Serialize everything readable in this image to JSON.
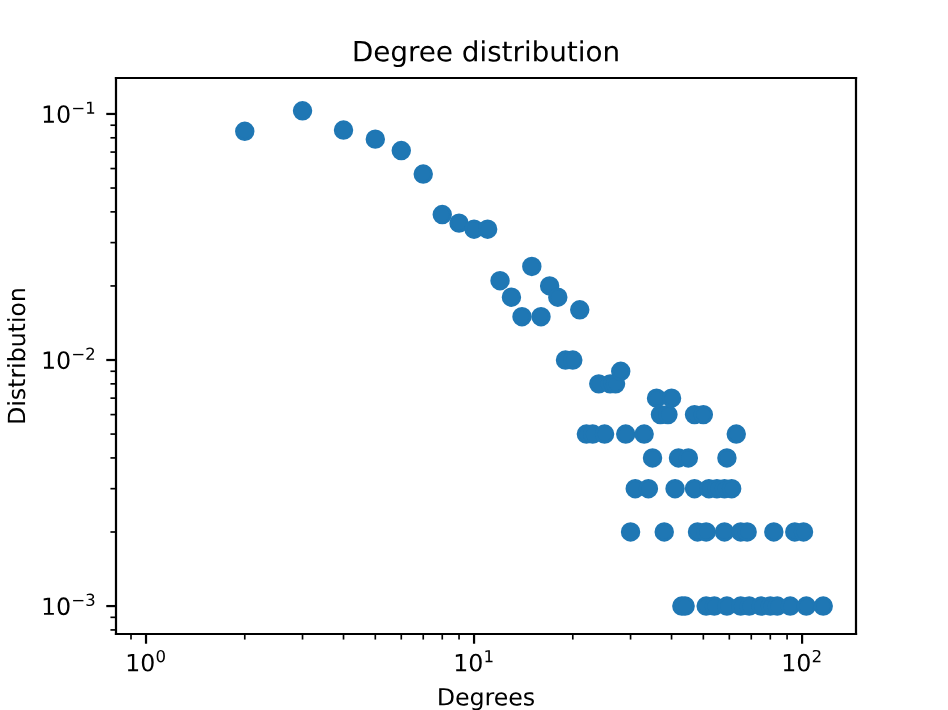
{
  "chart_data": {
    "type": "scatter",
    "title": "Degree distribution",
    "xlabel": "Degrees",
    "ylabel": "Distribution",
    "log": "xy",
    "marker": "circle",
    "grid": false,
    "x": [
      2,
      3,
      4,
      5,
      6,
      7,
      8,
      9,
      10,
      11,
      12,
      13,
      14,
      15,
      16,
      17,
      18,
      19,
      20,
      21,
      22,
      23,
      24,
      25,
      26,
      27,
      28,
      29,
      30,
      31,
      33,
      34,
      35,
      36,
      37,
      38,
      39,
      40,
      41,
      42,
      43,
      44,
      45,
      47,
      47,
      48,
      50,
      51,
      51,
      52,
      54,
      55,
      58,
      58,
      59,
      59,
      61,
      63,
      65,
      65,
      68,
      69,
      75,
      80,
      82,
      84,
      92,
      95,
      101,
      103,
      116
    ],
    "series": [
      {
        "color": "#1f77b4",
        "values": [
          0.085,
          0.103,
          0.086,
          0.079,
          0.071,
          0.057,
          0.039,
          0.036,
          0.034,
          0.034,
          0.021,
          0.018,
          0.015,
          0.024,
          0.015,
          0.02,
          0.018,
          0.01,
          0.01,
          0.016,
          0.005,
          0.005,
          0.008,
          0.005,
          0.008,
          0.008,
          0.009,
          0.005,
          0.002,
          0.003,
          0.005,
          0.003,
          0.004,
          0.007,
          0.006,
          0.002,
          0.006,
          0.007,
          0.003,
          0.004,
          0.001,
          0.001,
          0.004,
          0.003,
          0.006,
          0.002,
          0.006,
          0.002,
          0.001,
          0.003,
          0.001,
          0.003,
          0.003,
          0.002,
          0.004,
          0.001,
          0.003,
          0.005,
          0.002,
          0.001,
          0.002,
          0.001,
          0.001,
          0.001,
          0.002,
          0.001,
          0.001,
          0.002,
          0.002,
          0.001,
          0.001
        ]
      }
    ],
    "xlim": [
      0.81,
      146
    ],
    "ylim": [
      0.00077,
      0.14
    ],
    "xticks": [
      {
        "value": 1,
        "label": "10$^{0}$"
      },
      {
        "value": 10,
        "label": "10$^{1}$"
      },
      {
        "value": 100,
        "label": "10$^{2}$"
      }
    ],
    "yticks": [
      {
        "value": 0.001,
        "label": "10$^{−3}$"
      },
      {
        "value": 0.01,
        "label": "10$^{−2}$"
      },
      {
        "value": 0.1,
        "label": "10$^{−1}$"
      }
    ]
  }
}
